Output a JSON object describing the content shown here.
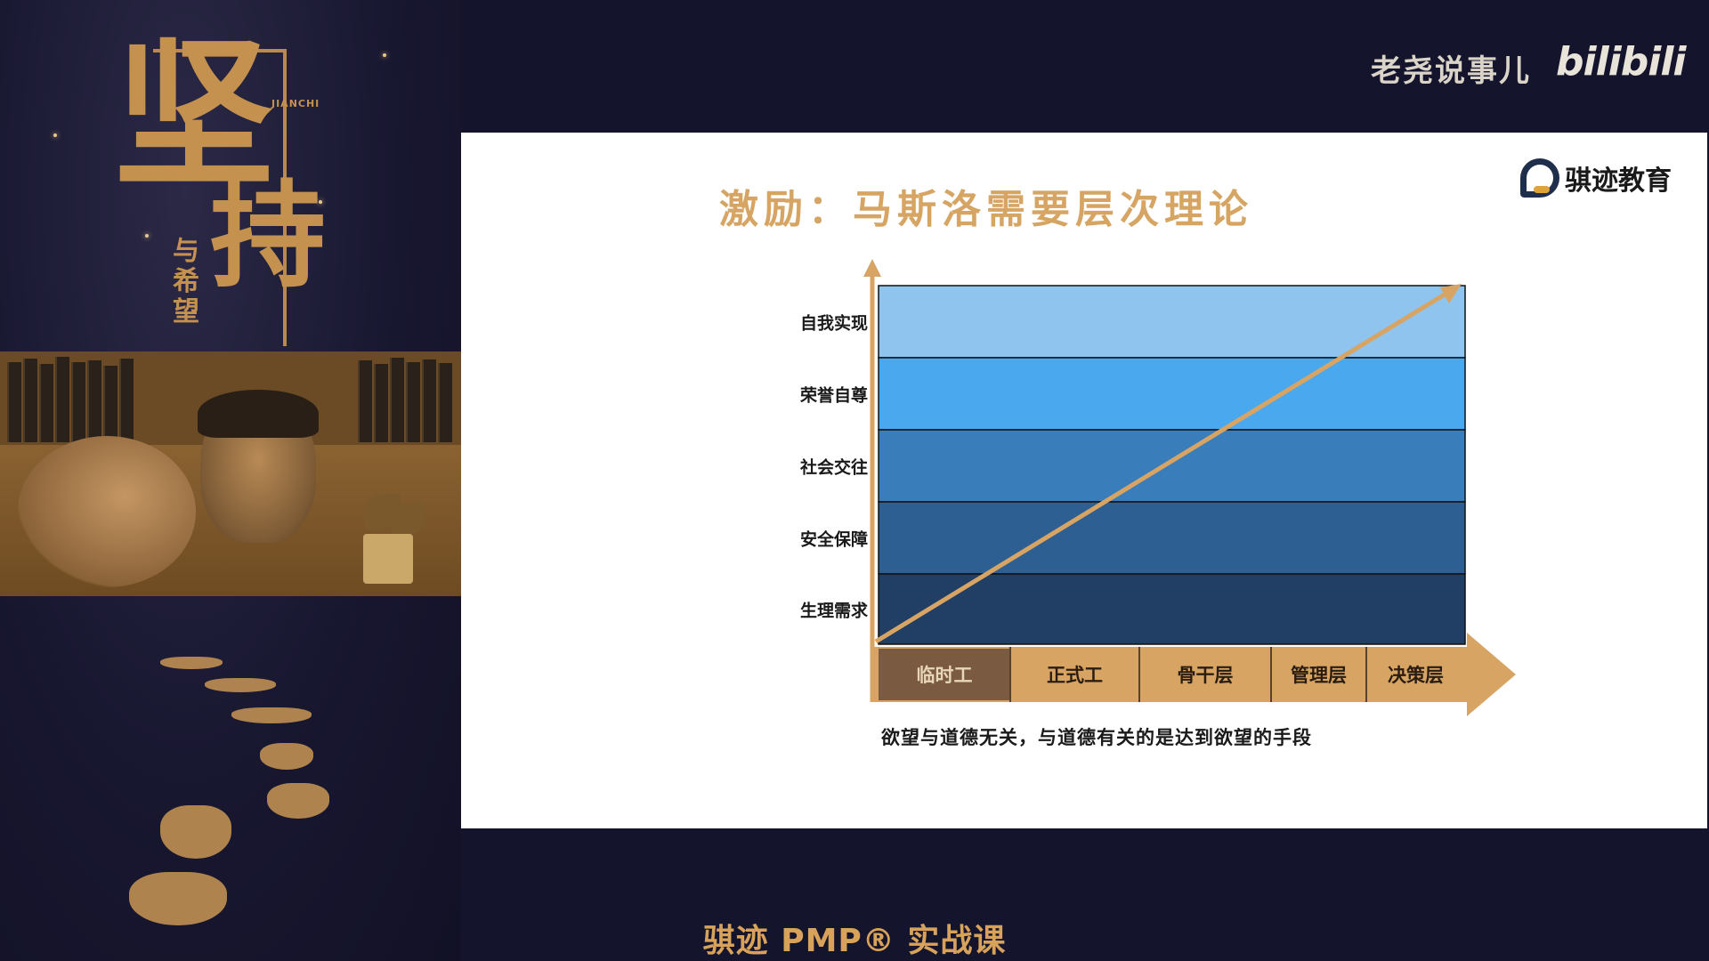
{
  "channel": {
    "name": "老尧说事儿",
    "platform_logo": "bilibili"
  },
  "poster": {
    "main_char_1": "坚",
    "main_char_2": "持",
    "subtitle": "与希望",
    "pinyin": "JIANCHI"
  },
  "slide": {
    "org_name": "骐迹教育",
    "org_logo_icon": "org-logo-icon",
    "title": "激励：马斯洛需要层次理论",
    "caption": "欲望与道德无关，与道德有关的是达到欲望的手段"
  },
  "chart_data": {
    "type": "diagram",
    "levels": [
      {
        "label": "自我实现",
        "color": "#8ec4ee"
      },
      {
        "label": "荣誉自尊",
        "color": "#4aa8ee"
      },
      {
        "label": "社会交往",
        "color": "#3a7dbb"
      },
      {
        "label": "安全保障",
        "color": "#2e5f93"
      },
      {
        "label": "生理需求",
        "color": "#213f64"
      }
    ],
    "stages": [
      {
        "label": "临时工",
        "active": true
      },
      {
        "label": "正式工",
        "active": false
      },
      {
        "label": "骨干层",
        "active": false
      },
      {
        "label": "管理层",
        "active": false
      },
      {
        "label": "决策层",
        "active": false
      }
    ],
    "accent_color": "#d8a463",
    "active_stage_color": "#7a5a40"
  },
  "footer": {
    "course_title": "骐迹 PMP® 实战课"
  }
}
